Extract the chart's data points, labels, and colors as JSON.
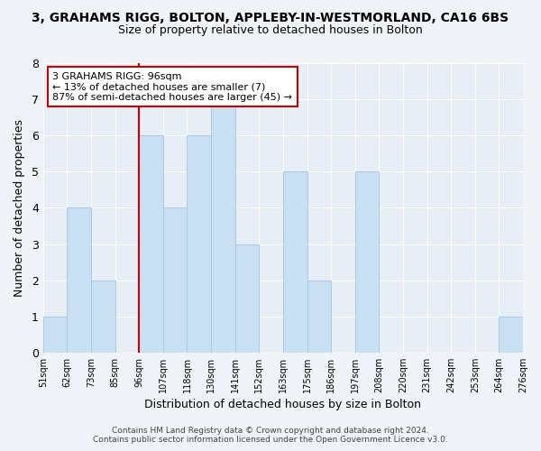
{
  "title": "3, GRAHAMS RIGG, BOLTON, APPLEBY-IN-WESTMORLAND, CA16 6BS",
  "subtitle": "Size of property relative to detached houses in Bolton",
  "xlabel": "Distribution of detached houses by size in Bolton",
  "ylabel": "Number of detached properties",
  "bin_labels": [
    "51sqm",
    "62sqm",
    "73sqm",
    "85sqm",
    "96sqm",
    "107sqm",
    "118sqm",
    "130sqm",
    "141sqm",
    "152sqm",
    "163sqm",
    "175sqm",
    "186sqm",
    "197sqm",
    "208sqm",
    "220sqm",
    "231sqm",
    "242sqm",
    "253sqm",
    "264sqm",
    "276sqm"
  ],
  "counts": [
    1,
    4,
    2,
    0,
    6,
    4,
    6,
    7,
    3,
    0,
    5,
    2,
    0,
    5,
    0,
    0,
    0,
    0,
    0,
    1
  ],
  "bar_color": "#c9dff2",
  "bar_edge_color": "#a8c8e8",
  "highlight_color": "#cc0000",
  "highlight_bin_index": 4,
  "annotation_title": "3 GRAHAMS RIGG: 96sqm",
  "annotation_line1": "← 13% of detached houses are smaller (7)",
  "annotation_line2": "87% of semi-detached houses are larger (45) →",
  "annotation_box_edge": "#cc0000",
  "ylim": [
    0,
    8
  ],
  "yticks": [
    0,
    1,
    2,
    3,
    4,
    5,
    6,
    7,
    8
  ],
  "footer1": "Contains HM Land Registry data © Crown copyright and database right 2024.",
  "footer2": "Contains public sector information licensed under the Open Government Licence v3.0.",
  "background_color": "#f0f4f8",
  "plot_bg_color": "#e8eef5",
  "grid_color": "#ffffff",
  "title_fontsize": 10,
  "subtitle_fontsize": 9
}
